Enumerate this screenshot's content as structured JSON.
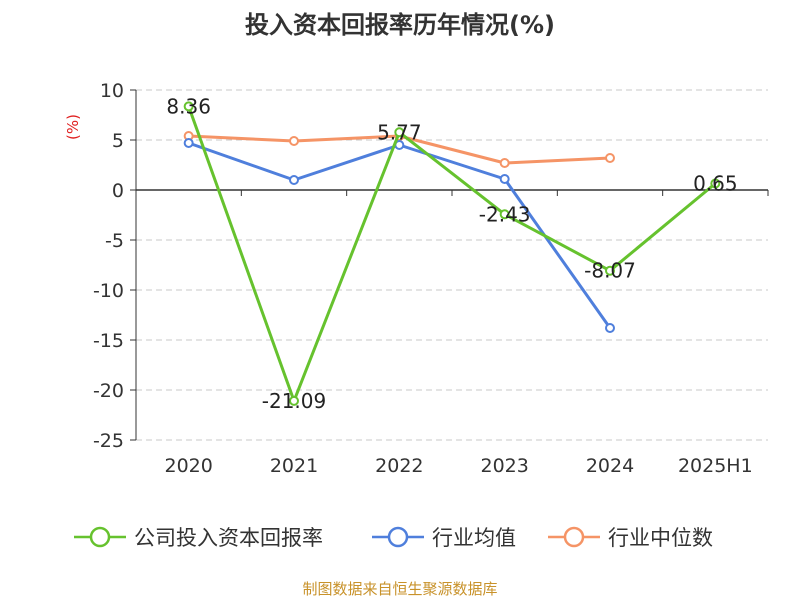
{
  "source_note": "制图数据来自恒生聚源数据库",
  "chart_data": {
    "type": "line",
    "title": "投入资本回报率历年情况(%)",
    "ylabel": "(%)",
    "xlabel": "",
    "categories": [
      "2020",
      "2021",
      "2022",
      "2023",
      "2024",
      "2025H1"
    ],
    "ylim": [
      -25,
      10
    ],
    "yticks": [
      10,
      5,
      0,
      -5,
      -10,
      -15,
      -20,
      -25
    ],
    "grid": true,
    "legend_position": "bottom",
    "series": [
      {
        "name": "公司投入资本回报率",
        "color": "#66c22e",
        "values": [
          8.36,
          -21.09,
          5.77,
          -2.43,
          -8.07,
          0.65
        ],
        "labels": [
          "8.36",
          "-21.09",
          "5.77",
          "-2.43",
          "-8.07",
          "0.65"
        ]
      },
      {
        "name": "行业均值",
        "color": "#4f7fdc",
        "values": [
          4.7,
          1.0,
          4.5,
          1.1,
          -13.8,
          null
        ]
      },
      {
        "name": "行业中位数",
        "color": "#f59466",
        "values": [
          5.4,
          4.9,
          5.4,
          2.7,
          3.2,
          null
        ]
      }
    ]
  }
}
